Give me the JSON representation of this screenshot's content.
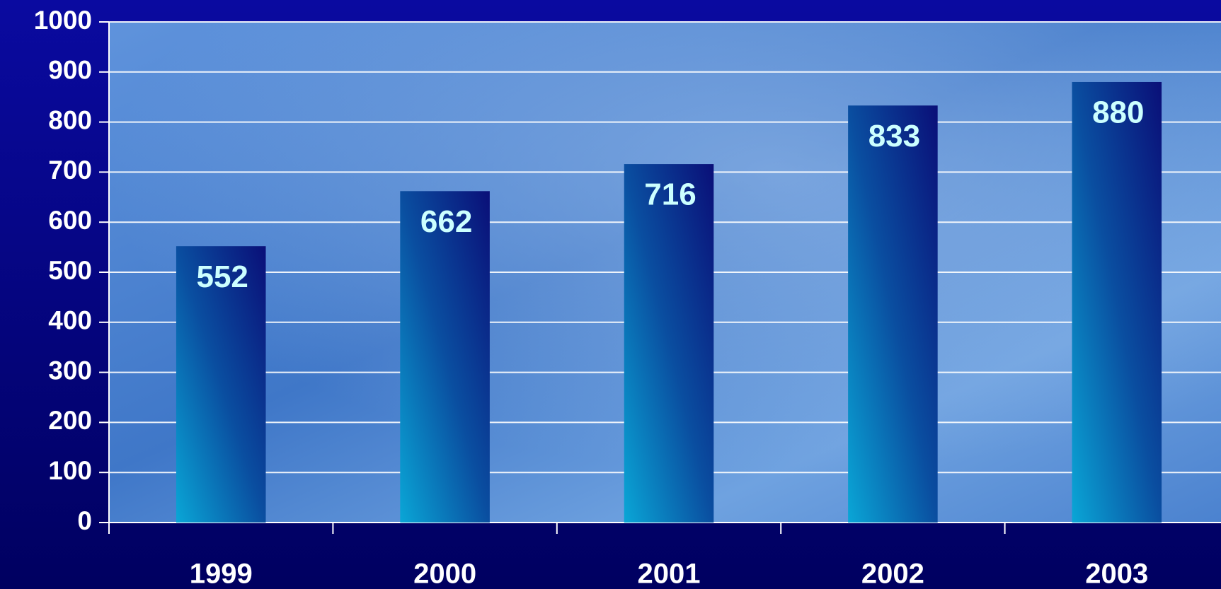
{
  "chart_data": {
    "type": "bar",
    "categories": [
      "1999",
      "2000",
      "2001",
      "2002",
      "2003"
    ],
    "values": [
      552,
      662,
      716,
      833,
      880
    ],
    "ylim": [
      0,
      1000
    ],
    "yticks": [
      0,
      100,
      200,
      300,
      400,
      500,
      600,
      700,
      800,
      900,
      1000
    ],
    "grid": true
  }
}
